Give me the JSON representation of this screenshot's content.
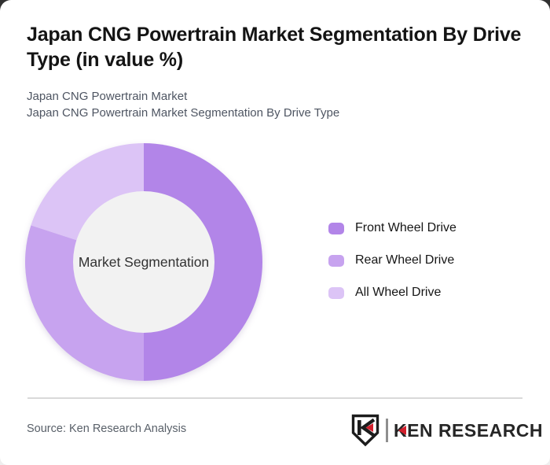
{
  "header": {
    "title": "Japan CNG Powertrain Market Segmentation By Drive Type (in value %)",
    "subtitle_line1": "Japan CNG Powertrain Market",
    "subtitle_line2": "Japan CNG Powertrain Market Segmentation By Drive Type"
  },
  "chart_data": {
    "type": "pie",
    "variant": "donut",
    "title": "Japan CNG Powertrain Market Segmentation By Drive Type (in value %)",
    "center_label": "Market Segmentation",
    "categories": [
      "Front Wheel Drive",
      "Rear Wheel Drive",
      "All Wheel Drive"
    ],
    "values": [
      50,
      30,
      20
    ],
    "unit": "percent",
    "colors": [
      "#B285E8",
      "#C7A3EF",
      "#DCC4F6"
    ],
    "donut_hole_color": "#F2F2F2",
    "start_angle_deg": 0,
    "direction": "clockwise",
    "legend_position": "right"
  },
  "footer": {
    "source": "Source: Ken Research Analysis",
    "logo": {
      "badge_letter": "K",
      "wordmark": "KEN RESEARCH",
      "accent_color": "#d21f2c",
      "dark_color": "#1c1c1c"
    }
  }
}
